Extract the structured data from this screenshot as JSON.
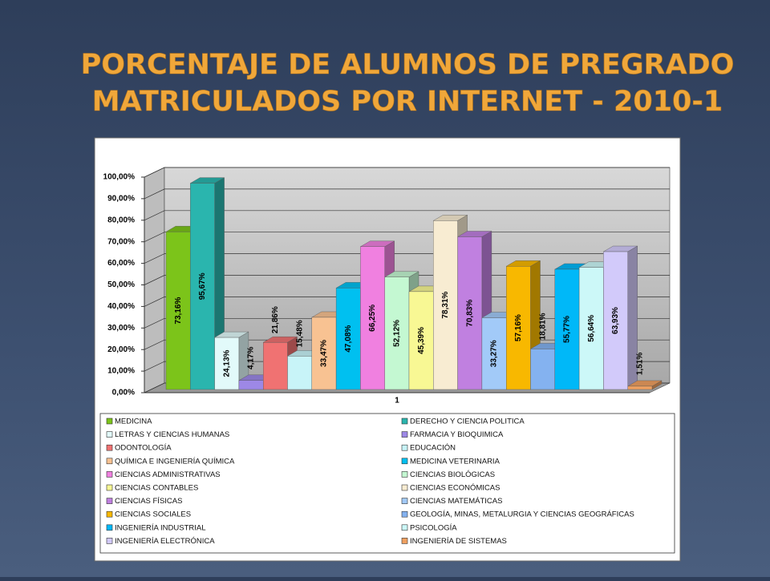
{
  "chart_data": {
    "type": "bar3d",
    "title": [
      "PORCENTAJE DE ALUMNOS DE PREGRADO",
      "MATRICULADOS POR INTERNET - 2010-1"
    ],
    "categories": [
      "1"
    ],
    "ylim": [
      0,
      100
    ],
    "yticks": [
      {
        "value": 0,
        "label": "0,00%"
      },
      {
        "value": 10,
        "label": "10,00%"
      },
      {
        "value": 20,
        "label": "20,00%"
      },
      {
        "value": 30,
        "label": "30,00%"
      },
      {
        "value": 40,
        "label": "40,00%"
      },
      {
        "value": 50,
        "label": "50,00%"
      },
      {
        "value": 60,
        "label": "60,00%"
      },
      {
        "value": 70,
        "label": "70,00%"
      },
      {
        "value": 80,
        "label": "80,00%"
      },
      {
        "value": 90,
        "label": "90,00%"
      },
      {
        "value": 100,
        "label": "100,00%"
      }
    ],
    "grid": true,
    "series": [
      {
        "name": "MEDICINA",
        "color": "#7cc41a",
        "values": [
          73.16
        ],
        "value_labels": [
          "73,16%"
        ]
      },
      {
        "name": "DERECHO Y CIENCIA POLITICA",
        "color": "#2ab5ae",
        "values": [
          95.67
        ],
        "value_labels": [
          "95,67%"
        ]
      },
      {
        "name": "LETRAS Y CIENCIAS HUMANAS",
        "color": "#e2fafa",
        "values": [
          24.13
        ],
        "value_labels": [
          "24,13%"
        ]
      },
      {
        "name": "FARMACIA Y BIOQUIMICA",
        "color": "#9d88e6",
        "values": [
          4.17
        ],
        "value_labels": [
          "4,17%"
        ]
      },
      {
        "name": "ODONTOLOGÍA",
        "color": "#f07272",
        "values": [
          21.86
        ],
        "value_labels": [
          "21,86%"
        ]
      },
      {
        "name": "EDUCACIÓN",
        "color": "#c8f4f8",
        "values": [
          15.48
        ],
        "value_labels": [
          "15,48%"
        ]
      },
      {
        "name": "QUÍMICA E INGENIERÍA QUÍMICA",
        "color": "#f8c292",
        "values": [
          33.47
        ],
        "value_labels": [
          "33,47%"
        ]
      },
      {
        "name": "MEDICINA VETERINARIA",
        "color": "#00c0f0",
        "values": [
          47.08
        ],
        "value_labels": [
          "47,08%"
        ]
      },
      {
        "name": "CIENCIAS ADMINISTRATIVAS",
        "color": "#f080e0",
        "values": [
          66.25
        ],
        "value_labels": [
          "66,25%"
        ]
      },
      {
        "name": "CIENCIAS BIOLÓGICAS",
        "color": "#c4f8d2",
        "values": [
          52.12
        ],
        "value_labels": [
          "52,12%"
        ]
      },
      {
        "name": "CIENCIAS CONTABLES",
        "color": "#f8f894",
        "values": [
          45.39
        ],
        "value_labels": [
          "45,39%"
        ]
      },
      {
        "name": "CIENCIAS ECONÓMICAS",
        "color": "#f8ecd2",
        "values": [
          78.31
        ],
        "value_labels": [
          "78,31%"
        ]
      },
      {
        "name": "CIENCIAS FÍSICAS",
        "color": "#c080e0",
        "values": [
          70.83
        ],
        "value_labels": [
          "70,83%"
        ]
      },
      {
        "name": "CIENCIAS MATEMÁTICAS",
        "color": "#a2caf8",
        "values": [
          33.27
        ],
        "value_labels": [
          "33,27%"
        ]
      },
      {
        "name": "CIENCIAS SOCIALES",
        "color": "#f8b800",
        "values": [
          57.16
        ],
        "value_labels": [
          "57,16%"
        ]
      },
      {
        "name": "GEOLOGÍA, MINAS, METALURGIA Y CIENCIAS GEOGRÁFICAS",
        "color": "#84b2f0",
        "values": [
          18.81
        ],
        "value_labels": [
          "18,81%"
        ]
      },
      {
        "name": "INGENIERÍA INDUSTRIAL",
        "color": "#00b8f8",
        "values": [
          55.77
        ],
        "value_labels": [
          "55,77%"
        ]
      },
      {
        "name": "PSICOLOGÍA",
        "color": "#ccf8f8",
        "values": [
          56.64
        ],
        "value_labels": [
          "56,64%"
        ]
      },
      {
        "name": "INGENIERÍA ELECTRÓNICA",
        "color": "#d2cafa",
        "values": [
          63.93
        ],
        "value_labels": [
          "63,93%"
        ]
      },
      {
        "name": "INGENIERÍA DE SISTEMAS",
        "color": "#f0a060",
        "values": [
          1.51
        ],
        "value_labels": [
          "1,51%"
        ]
      }
    ]
  }
}
